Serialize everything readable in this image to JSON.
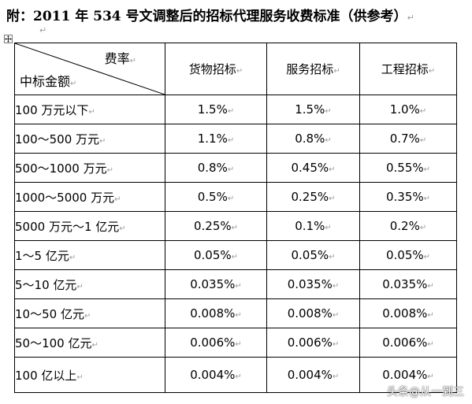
{
  "title": "附：2011 年 534 号文调整后的招标代理服务收费标准（供参考）",
  "paragraph_mark": "↵",
  "table": {
    "header": {
      "diagonal_top": "费率",
      "diagonal_bottom": "中标金额",
      "columns": [
        "货物招标",
        "服务招标",
        "工程招标"
      ]
    },
    "rows": [
      {
        "range": "100 万元以下",
        "goods": "1.5%",
        "service": "1.5%",
        "engineering": "1.0%"
      },
      {
        "range": "100～500 万元",
        "goods": "1.1%",
        "service": "0.8%",
        "engineering": "0.7%"
      },
      {
        "range": "500～1000 万元",
        "goods": "0.8%",
        "service": "0.45%",
        "engineering": "0.55%"
      },
      {
        "range": "1000～5000 万元",
        "goods": "0.5%",
        "service": "0.25%",
        "engineering": "0.35%"
      },
      {
        "range": "5000 万元～1 亿元",
        "goods": "0.25%",
        "service": "0.1%",
        "engineering": "0.2%"
      },
      {
        "range": "1～5 亿元",
        "goods": "0.05%",
        "service": "0.05%",
        "engineering": "0.05%"
      },
      {
        "range": "5～10 亿元",
        "goods": "0.035%",
        "service": "0.035%",
        "engineering": "0.035%"
      },
      {
        "range": "10～50 亿元",
        "goods": "0.008%",
        "service": "0.008%",
        "engineering": "0.008%"
      },
      {
        "range": "50～100 亿元",
        "goods": "0.006%",
        "service": "0.006%",
        "engineering": "0.006%"
      },
      {
        "range": "100 亿以上",
        "goods": "0.004%",
        "service": "0.004%",
        "engineering": "0.004%"
      }
    ]
  },
  "watermark": "头条@从一到三"
}
